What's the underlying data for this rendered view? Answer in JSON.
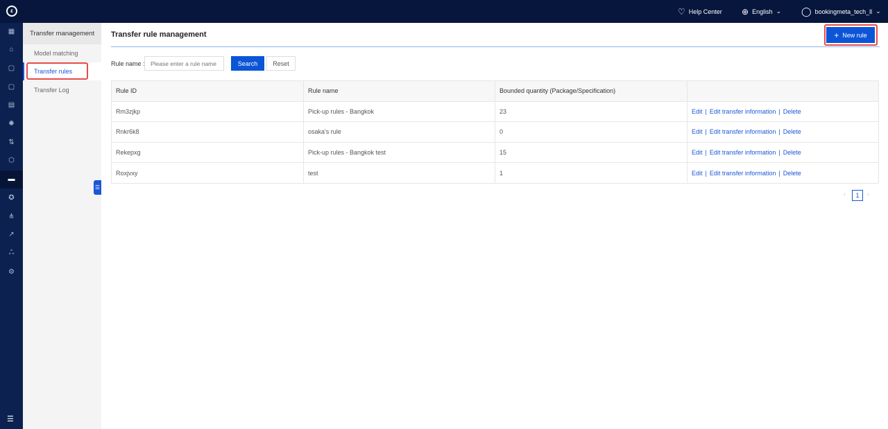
{
  "header": {
    "help": "Help Center",
    "language": "English",
    "user": "bookingmeta_tech_ll"
  },
  "rail": {
    "icons": [
      "grid-icon",
      "home-icon",
      "bag-icon",
      "bag-alt-icon",
      "clipboard-icon",
      "settings-gear-icon",
      "route-icon",
      "package-icon",
      "car-icon",
      "award-icon",
      "network-icon",
      "chart-icon",
      "users-icon",
      "cog-icon"
    ],
    "active": "car-icon"
  },
  "submenu": {
    "title": "Transfer management",
    "items": [
      {
        "label": "Model matching"
      },
      {
        "label": "Transfer rules",
        "active": true
      },
      {
        "label": "Transfer Log"
      }
    ]
  },
  "page": {
    "title": "Transfer rule management",
    "new_button": "New rule"
  },
  "filter": {
    "label": "Rule name :",
    "placeholder": "Please enter a rule name",
    "value": "",
    "search": "Search",
    "reset": "Reset"
  },
  "table": {
    "columns": [
      "Rule ID",
      "Rule name",
      "Bounded quantity (Package/Specification)",
      ""
    ],
    "rows": [
      {
        "id": "Rm3zjkp",
        "name": "Pick-up rules - Bangkok",
        "qty": "23"
      },
      {
        "id": "Rnkr6k8",
        "name": "osaka's rule",
        "qty": "0"
      },
      {
        "id": "Rekepxg",
        "name": "Pick-up rules - Bangkok test",
        "qty": "15"
      },
      {
        "id": "Roxjvxy",
        "name": "test",
        "qty": "1"
      }
    ],
    "actions": {
      "edit": "Edit",
      "edit_info": "Edit transfer information",
      "delete": "Delete"
    }
  },
  "pagination": {
    "current": "1"
  },
  "colors": {
    "accent": "#0b55d6",
    "topbar": "#07163d",
    "highlight": "#e84a4a"
  }
}
